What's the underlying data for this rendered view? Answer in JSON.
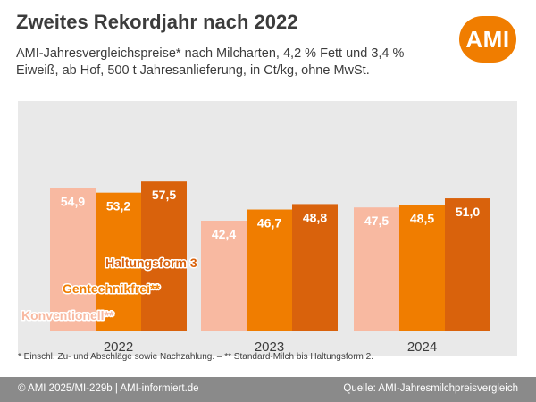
{
  "header": {
    "title": "Zweites Rekordjahr nach 2022",
    "subtitle": "AMI-Jahresvergleichspreise* nach Milcharten, 4,2 % Fett und 3,4 % Eiweiß, ab Hof, 500 t Jahresanlieferung, in Ct/kg, ohne MwSt."
  },
  "logo": {
    "text": "AMI",
    "color": "#f07d00"
  },
  "chart_data": {
    "type": "bar",
    "categories": [
      "2022",
      "2023",
      "2024"
    ],
    "series": [
      {
        "name": "Konventionell**",
        "values": [
          54.9,
          42.4,
          47.5
        ],
        "labels": [
          "54,9",
          "42,4",
          "47,5"
        ],
        "color": "#f8b9a1"
      },
      {
        "name": "Gentechnikfrei**",
        "values": [
          53.2,
          46.7,
          48.5
        ],
        "labels": [
          "53,2",
          "46,7",
          "48,5"
        ],
        "color": "#f07d00"
      },
      {
        "name": "Haltungsform 3",
        "values": [
          57.5,
          48.8,
          51.0
        ],
        "labels": [
          "57,5",
          "48,8",
          "51,0"
        ],
        "color": "#d9620c"
      }
    ],
    "ylim": [
      0,
      62
    ],
    "grid": false,
    "legend": "inside-left"
  },
  "footnote": "* Einschl. Zu- und Abschläge sowie Nachzahlung. – ** Standard-Milch bis Haltungsform 2.",
  "footer": {
    "left": "© AMI 2025/MI-229b | AMI-informiert.de",
    "right": "Quelle:  AMI-Jahresmilchpreisvergleich"
  }
}
